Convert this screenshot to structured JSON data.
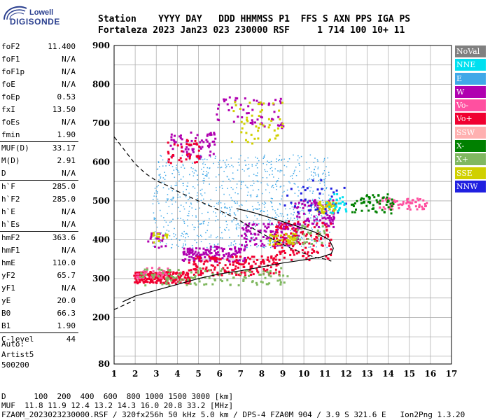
{
  "logo": {
    "line1": "Lowell",
    "line2": "DIGISONDE"
  },
  "header": {
    "line1": "Station    YYYY DAY   DDD HHMMSS P1  FFS S AXN PPS IGA PS",
    "line2": "Fortaleza 2023 Jan23 023 230000 RSF     1 714 100 10+ 11"
  },
  "params": [
    [
      {
        "label": "foF2",
        "value": "11.400"
      },
      {
        "label": "foF1",
        "value": "N/A"
      },
      {
        "label": "foF1p",
        "value": "N/A"
      },
      {
        "label": "foE",
        "value": "N/A"
      },
      {
        "label": "foEp",
        "value": "0.53"
      },
      {
        "label": "fxI",
        "value": "13.50"
      },
      {
        "label": "foEs",
        "value": "N/A"
      },
      {
        "label": "fmin",
        "value": "1.90"
      }
    ],
    [
      {
        "label": "MUF(D)",
        "value": "33.17"
      },
      {
        "label": "M(D)",
        "value": "2.91"
      },
      {
        "label": "D",
        "value": "N/A"
      }
    ],
    [
      {
        "label": "h`F",
        "value": "285.0"
      },
      {
        "label": "h`F2",
        "value": "285.0"
      },
      {
        "label": "h`E",
        "value": "N/A"
      },
      {
        "label": "h`Es",
        "value": "N/A"
      }
    ],
    [
      {
        "label": "hmF2",
        "value": "363.6"
      },
      {
        "label": "hmF1",
        "value": "N/A"
      },
      {
        "label": "hmE",
        "value": "110.0"
      },
      {
        "label": "yF2",
        "value": "65.7"
      },
      {
        "label": "yF1",
        "value": "N/A"
      },
      {
        "label": "yE",
        "value": "20.0"
      },
      {
        "label": "B0",
        "value": "66.3"
      },
      {
        "label": "B1",
        "value": "1.90"
      }
    ],
    [
      {
        "label": "C-level",
        "value": "44"
      }
    ]
  ],
  "auto": {
    "line1": "Auto:",
    "line2": "Artist5",
    "line3": "500200"
  },
  "legend": [
    {
      "label": "NoVal",
      "color": "#808080",
      "text_color": "#ffffff"
    },
    {
      "label": "NNE",
      "color": "#00e0f0",
      "text_color": "#ffffff"
    },
    {
      "label": "E",
      "color": "#40a8e8",
      "text_color": "#ffffff"
    },
    {
      "label": "W",
      "color": "#b000b0",
      "text_color": "#ffffff"
    },
    {
      "label": "Vo-",
      "color": "#ff50a0",
      "text_color": "#ffffff"
    },
    {
      "label": "Vo+",
      "color": "#f00030",
      "text_color": "#ffffff"
    },
    {
      "label": "SSW",
      "color": "#ffb0b0",
      "text_color": "#ffffff"
    },
    {
      "label": "X-",
      "color": "#008000",
      "text_color": "#ffffff"
    },
    {
      "label": "X+",
      "color": "#80b860",
      "text_color": "#ffffff"
    },
    {
      "label": "SSE",
      "color": "#d0d000",
      "text_color": "#ffffff"
    },
    {
      "label": "NNW",
      "color": "#2020e0",
      "text_color": "#ffffff"
    }
  ],
  "footer": {
    "line1": "D      100  200  400  600  800 1000 1500 3000 [km]",
    "line2": "MUF  11.8 11.9 12.4 13.2 14.3 16.0 20.8 33.2 [MHz]",
    "line3": "FZA0M_2023023230000.RSF / 320fx256h 50 kHz 5.0 km / DPS-4 FZA0M 904 / 3.9 S 321.6 E   Ion2Png 1.3.20"
  },
  "chart_data": {
    "type": "scatter",
    "title": "",
    "xlabel": "",
    "ylabel": "",
    "xlim": [
      1,
      17
    ],
    "ylim": [
      80,
      900
    ],
    "x_ticks": [
      1,
      2,
      3,
      4,
      5,
      6,
      7,
      8,
      9,
      10,
      11,
      12,
      13,
      14,
      15,
      16,
      17
    ],
    "y_ticks": [
      80,
      200,
      300,
      400,
      500,
      600,
      700,
      800,
      900
    ],
    "series": [
      {
        "name": "E",
        "color": "#40a8e8",
        "clusters": [
          {
            "x": [
              2.8,
              11.2
            ],
            "y": [
              380,
              620
            ],
            "n": 900
          }
        ]
      },
      {
        "name": "W",
        "color": "#b000b0",
        "clusters": [
          {
            "x": [
              4.2,
              7.2
            ],
            "y": [
              345,
              385
            ],
            "n": 140
          },
          {
            "x": [
              7.0,
              9.8
            ],
            "y": [
              385,
              445
            ],
            "n": 120
          },
          {
            "x": [
              9.5,
              11.4
            ],
            "y": [
              435,
              505
            ],
            "n": 90
          },
          {
            "x": [
              3.6,
              5.8
            ],
            "y": [
              610,
              680
            ],
            "n": 70
          },
          {
            "x": [
              5.8,
              9.0
            ],
            "y": [
              690,
              770
            ],
            "n": 60
          },
          {
            "x": [
              2.5,
              3.4
            ],
            "y": [
              380,
              420
            ],
            "n": 20
          }
        ]
      },
      {
        "name": "Vo+",
        "color": "#f00030",
        "clusters": [
          {
            "x": [
              1.9,
              4.6
            ],
            "y": [
              290,
              320
            ],
            "n": 220
          },
          {
            "x": [
              4.5,
              8.8
            ],
            "y": [
              310,
              360
            ],
            "n": 180
          },
          {
            "x": [
              8.5,
              11.3
            ],
            "y": [
              350,
              450
            ],
            "n": 140
          },
          {
            "x": [
              3.5,
              5.0
            ],
            "y": [
              600,
              660
            ],
            "n": 40
          }
        ]
      },
      {
        "name": "Vo-",
        "color": "#ff50a0",
        "clusters": [
          {
            "x": [
              13.5,
              15.8
            ],
            "y": [
              480,
              510
            ],
            "n": 70
          },
          {
            "x": [
              2.0,
              3.5
            ],
            "y": [
              300,
              330
            ],
            "n": 40
          }
        ]
      },
      {
        "name": "X+",
        "color": "#80b860",
        "clusters": [
          {
            "x": [
              2.2,
              9.2
            ],
            "y": [
              285,
              330
            ],
            "n": 120
          },
          {
            "x": [
              9.5,
              11.0
            ],
            "y": [
              390,
              440
            ],
            "n": 30
          }
        ]
      },
      {
        "name": "X-",
        "color": "#008000",
        "clusters": [
          {
            "x": [
              12.2,
              14.2
            ],
            "y": [
              470,
              520
            ],
            "n": 60
          }
        ]
      },
      {
        "name": "SSE",
        "color": "#d0d000",
        "clusters": [
          {
            "x": [
              8.3,
              9.6
            ],
            "y": [
              390,
              420
            ],
            "n": 40
          },
          {
            "x": [
              10.6,
              11.5
            ],
            "y": [
              470,
              500
            ],
            "n": 50
          },
          {
            "x": [
              6.5,
              9.0
            ],
            "y": [
              650,
              760
            ],
            "n": 50
          },
          {
            "x": [
              2.8,
              3.5
            ],
            "y": [
              395,
              420
            ],
            "n": 15
          }
        ]
      },
      {
        "name": "NNW",
        "color": "#2020e0",
        "clusters": [
          {
            "x": [
              9.0,
              12.0
            ],
            "y": [
              470,
              560
            ],
            "n": 35
          }
        ]
      },
      {
        "name": "NNE",
        "color": "#00e0f0",
        "clusters": [
          {
            "x": [
              11.0,
              12.0
            ],
            "y": [
              470,
              520
            ],
            "n": 25
          }
        ]
      }
    ],
    "profile_solid": {
      "x": [
        1.4,
        2,
        3,
        4,
        5,
        6,
        7,
        8,
        9,
        10,
        10.8,
        11.3,
        11.4,
        11.2,
        10.5,
        9.5,
        8.5,
        7.6,
        6.8
      ],
      "y": [
        240,
        255,
        270,
        285,
        300,
        312,
        320,
        330,
        340,
        348,
        355,
        364,
        378,
        400,
        420,
        438,
        455,
        470,
        480
      ]
    },
    "profile_dashed": {
      "x": [
        1.0,
        1.5,
        2.0,
        2.5,
        3.0,
        3.5,
        4.0,
        4.5,
        5.0,
        5.5,
        6.0,
        6.5,
        7.0,
        7.5,
        8.0,
        8.5,
        9.0,
        9.5,
        10.0,
        10.5,
        11.0,
        11.3
      ],
      "y": [
        665,
        630,
        595,
        570,
        552,
        540,
        525,
        512,
        500,
        488,
        475,
        462,
        448,
        432,
        416,
        402,
        388,
        375,
        365,
        355,
        350,
        345
      ]
    },
    "profile_dashed_lower": {
      "x": [
        1.0,
        1.2,
        1.6,
        2.0
      ],
      "y": [
        220,
        225,
        235,
        245
      ]
    }
  }
}
